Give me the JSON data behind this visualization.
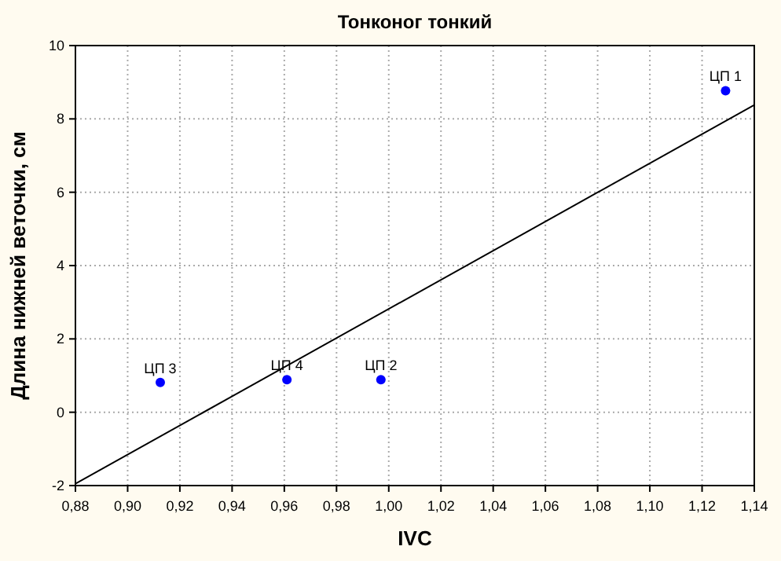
{
  "chart_data": {
    "type": "scatter",
    "title": "Тонконог тонкий",
    "xlabel": "IVC",
    "ylabel": "Длина нижней веточки, см",
    "series": [
      {
        "color": "#0000ff",
        "x": [
          1.129,
          0.997,
          0.9125,
          0.961
        ],
        "values": [
          8.77,
          0.89,
          0.81,
          0.89
        ],
        "marker": "circle"
      },
      {
        "type": "line",
        "color": "#000000",
        "x": [
          0.88,
          1.14
        ],
        "values": [
          -1.95,
          8.38
        ]
      }
    ],
    "annotations": [
      {
        "text": "ЦП 1",
        "x": 1.129,
        "y": 8.77
      },
      {
        "text": "ЦП 2",
        "x": 0.997,
        "y": 0.89
      },
      {
        "text": "ЦП 3",
        "x": 0.9125,
        "y": 0.81
      },
      {
        "text": "ЦП 4",
        "x": 0.961,
        "y": 0.89
      }
    ],
    "xlim": [
      0.88,
      1.14
    ],
    "ylim": [
      -2,
      10
    ],
    "xticks": [
      {
        "value": 0.88,
        "label": "0,88"
      },
      {
        "value": 0.9,
        "label": "0,90"
      },
      {
        "value": 0.92,
        "label": "0,92"
      },
      {
        "value": 0.94,
        "label": "0,94"
      },
      {
        "value": 0.96,
        "label": "0,96"
      },
      {
        "value": 0.98,
        "label": "0,98"
      },
      {
        "value": 1.0,
        "label": "1,00"
      },
      {
        "value": 1.02,
        "label": "1,02"
      },
      {
        "value": 1.04,
        "label": "1,04"
      },
      {
        "value": 1.06,
        "label": "1,06"
      },
      {
        "value": 1.08,
        "label": "1,08"
      },
      {
        "value": 1.1,
        "label": "1,10"
      },
      {
        "value": 1.12,
        "label": "1,12"
      },
      {
        "value": 1.14,
        "label": "1,14"
      }
    ],
    "yticks": [
      -2,
      0,
      2,
      4,
      6,
      8,
      10
    ],
    "grid": true,
    "line_style": "solid"
  }
}
